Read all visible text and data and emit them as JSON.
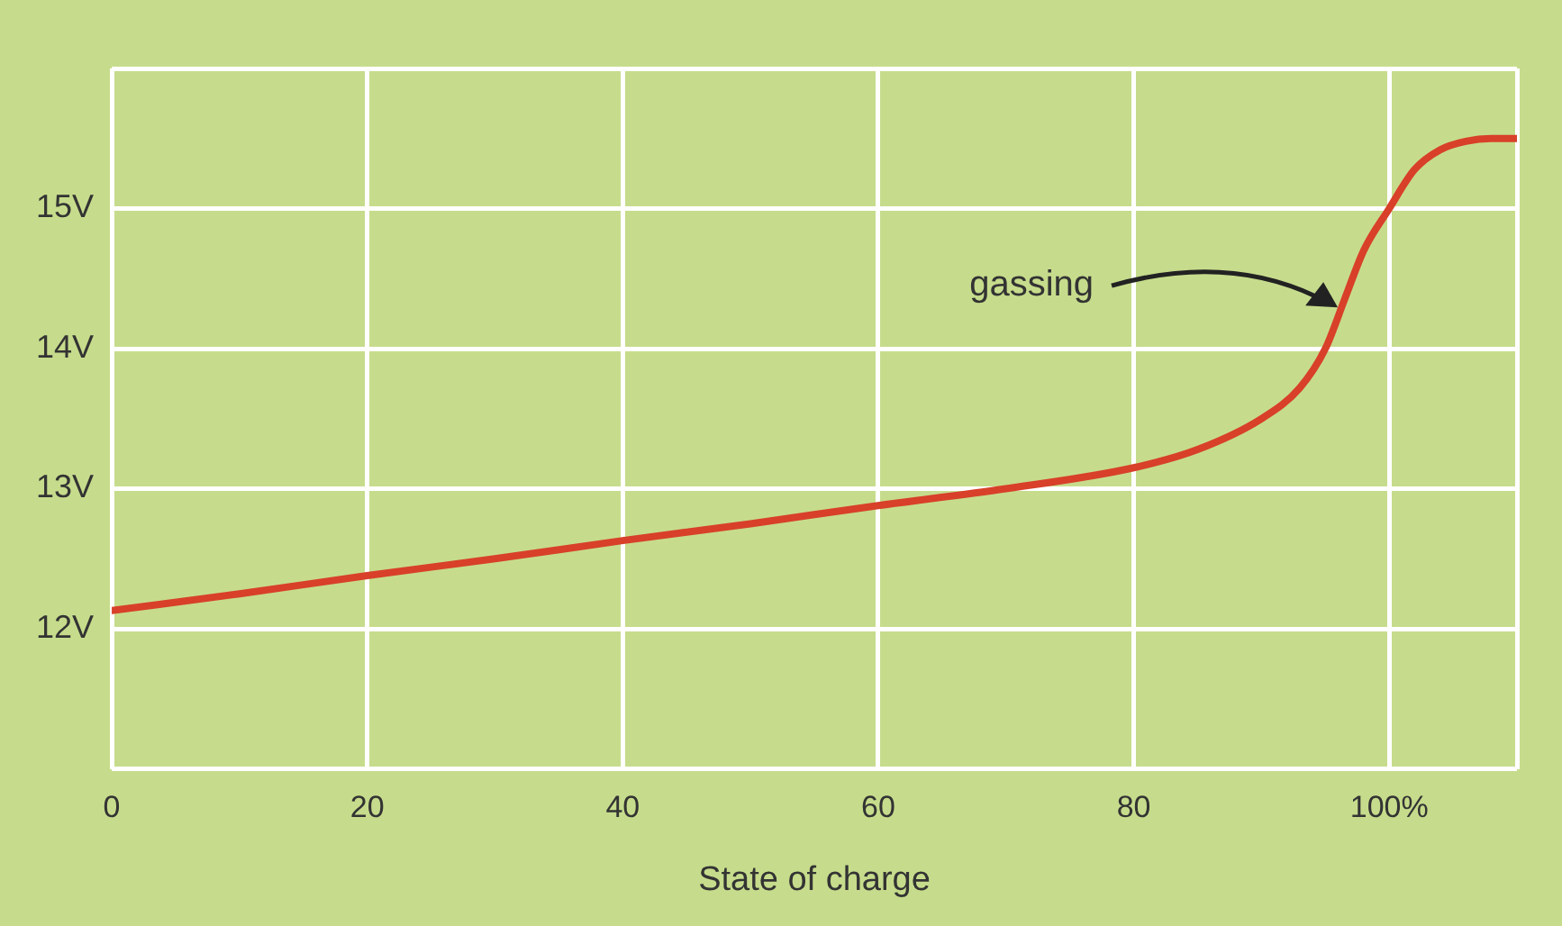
{
  "chart_data": {
    "type": "line",
    "xlabel": "State of charge",
    "x": [
      0,
      10,
      20,
      30,
      40,
      50,
      60,
      70,
      80,
      85,
      90,
      93,
      95,
      96.5,
      98,
      100,
      102,
      104,
      106,
      108,
      110
    ],
    "series": [
      {
        "color": "#d8402a",
        "values": [
          12.13,
          12.25,
          12.38,
          12.5,
          12.63,
          12.75,
          12.88,
          13.0,
          13.15,
          13.28,
          13.5,
          13.72,
          14.0,
          14.35,
          14.7,
          15.0,
          15.28,
          15.42,
          15.48,
          15.5,
          15.5
        ]
      }
    ],
    "xlim": [
      0,
      110
    ],
    "xticks": [
      0,
      20,
      40,
      60,
      80,
      {
        "value": 100,
        "label": "100%"
      },
      {
        "value": 110,
        "label": null
      }
    ],
    "ylim": [
      11,
      16
    ],
    "yticks": [
      {
        "value": 11,
        "label": null
      },
      {
        "value": 12,
        "label": "12V"
      },
      {
        "value": 13,
        "label": "13V"
      },
      {
        "value": 14,
        "label": "14V"
      },
      {
        "value": 15,
        "label": "15V"
      },
      {
        "value": 16,
        "label": null
      }
    ],
    "grid": true,
    "legend": false,
    "marker": "none",
    "line_style": "solid",
    "annotations": [
      "gassing"
    ]
  }
}
